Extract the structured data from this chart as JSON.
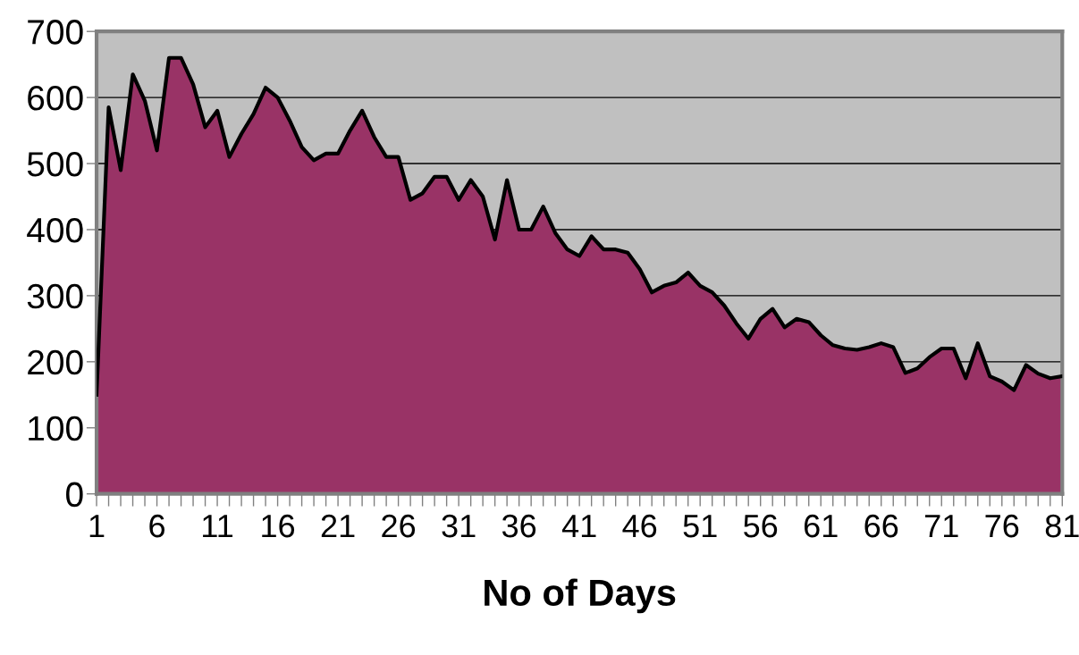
{
  "chart_data": {
    "type": "area",
    "xlabel": "No of Days",
    "categories": [
      "1",
      null,
      null,
      null,
      null,
      "6",
      null,
      null,
      null,
      null,
      "11",
      null,
      null,
      null,
      null,
      "16",
      null,
      null,
      null,
      null,
      "21",
      null,
      null,
      null,
      null,
      "26",
      null,
      null,
      null,
      null,
      "31",
      null,
      null,
      null,
      null,
      "36",
      null,
      null,
      null,
      null,
      "41",
      null,
      null,
      null,
      null,
      "46",
      null,
      null,
      null,
      null,
      "51",
      null,
      null,
      null,
      null,
      "56",
      null,
      null,
      null,
      null,
      "61",
      null,
      null,
      null,
      null,
      "66",
      null,
      null,
      null,
      null,
      "71",
      null,
      null,
      null,
      null,
      "76",
      null,
      null,
      null,
      null,
      "81"
    ],
    "series": [
      {
        "color": "#993366",
        "values": [
          150,
          585,
          490,
          635,
          595,
          520,
          660,
          660,
          620,
          555,
          580,
          510,
          545,
          575,
          615,
          600,
          565,
          525,
          505,
          515,
          515,
          550,
          580,
          540,
          510,
          510,
          445,
          455,
          480,
          480,
          445,
          475,
          450,
          385,
          475,
          400,
          400,
          435,
          395,
          370,
          360,
          390,
          370,
          370,
          365,
          340,
          305,
          315,
          320,
          335,
          315,
          305,
          285,
          258,
          235,
          265,
          280,
          252,
          265,
          260,
          240,
          225,
          220,
          218,
          222,
          228,
          222,
          183,
          190,
          207,
          220,
          220,
          175,
          228,
          178,
          170,
          157,
          195,
          182,
          175,
          178
        ]
      }
    ],
    "ylim": [
      0,
      700
    ],
    "yticks": [
      0,
      100,
      200,
      300,
      400,
      500,
      600,
      700
    ],
    "grid": "y"
  }
}
